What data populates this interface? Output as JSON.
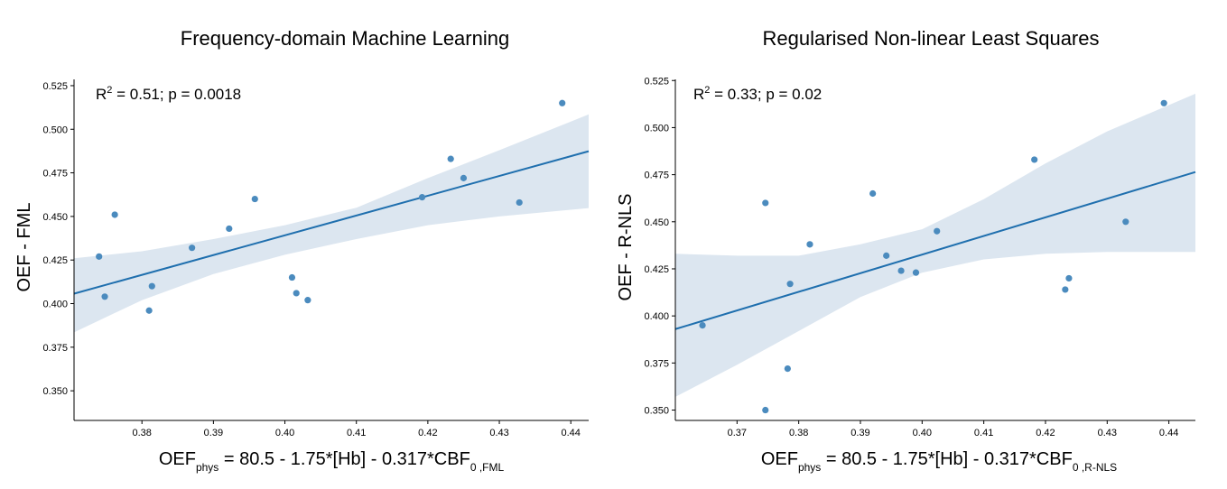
{
  "chart_data": [
    {
      "type": "scatter",
      "title": "Frequency-domain Machine Learning",
      "ylabel": "OEF - FML",
      "xlabel": {
        "main": "OEF",
        "sub_phys": "phys",
        "formula": " = 80.5 - 1.75*[Hb] - 0.317*CBF",
        "sub_tail": "0 ,FML"
      },
      "annotation": {
        "r2_label": "R",
        "r2_sup": "2",
        "stats": " = 0.51;   p = 0.0018"
      },
      "xlim": [
        0.3705,
        0.4425
      ],
      "ylim": [
        0.333,
        0.5286
      ],
      "xticks": [
        0.38,
        0.39,
        0.4,
        0.41,
        0.42,
        0.43,
        0.44
      ],
      "xtick_labels": [
        "0.38",
        "0.39",
        "0.40",
        "0.41",
        "0.42",
        "0.43",
        "0.44"
      ],
      "yticks": [
        0.35,
        0.375,
        0.4,
        0.425,
        0.45,
        0.475,
        0.5,
        0.525
      ],
      "ytick_labels": [
        "0.350",
        "0.375",
        "0.400",
        "0.425",
        "0.450",
        "0.475",
        "0.500",
        "0.525"
      ],
      "points": [
        {
          "x": 0.374,
          "y": 0.427
        },
        {
          "x": 0.3748,
          "y": 0.404
        },
        {
          "x": 0.3762,
          "y": 0.451
        },
        {
          "x": 0.381,
          "y": 0.396
        },
        {
          "x": 0.3814,
          "y": 0.41
        },
        {
          "x": 0.387,
          "y": 0.432
        },
        {
          "x": 0.3922,
          "y": 0.443
        },
        {
          "x": 0.3958,
          "y": 0.46
        },
        {
          "x": 0.401,
          "y": 0.415
        },
        {
          "x": 0.4016,
          "y": 0.406
        },
        {
          "x": 0.4032,
          "y": 0.402
        },
        {
          "x": 0.4192,
          "y": 0.461
        },
        {
          "x": 0.4232,
          "y": 0.483
        },
        {
          "x": 0.425,
          "y": 0.472
        },
        {
          "x": 0.4328,
          "y": 0.458
        },
        {
          "x": 0.4388,
          "y": 0.515
        }
      ],
      "fit": {
        "x": [
          0.3705,
          0.4425
        ],
        "y": [
          0.4057,
          0.4874
        ]
      },
      "ci_band": {
        "x": [
          0.3705,
          0.38,
          0.39,
          0.4,
          0.41,
          0.42,
          0.43,
          0.4425
        ],
        "upper": [
          0.426,
          0.43,
          0.437,
          0.445,
          0.455,
          0.472,
          0.488,
          0.5085
        ],
        "lower": [
          0.3835,
          0.402,
          0.417,
          0.428,
          0.437,
          0.445,
          0.45,
          0.4548
        ]
      },
      "colors": {
        "points": "#4b8bbe",
        "line": "#1f6fae",
        "band": "#dce6f0"
      }
    },
    {
      "type": "scatter",
      "title": "Regularised Non-linear Least Squares",
      "ylabel": "OEF - R-NLS",
      "xlabel": {
        "main": "OEF",
        "sub_phys": "phys",
        "formula": " = 80.5 - 1.75*[Hb] - 0.317*CBF",
        "sub_tail": "0 ,R-NLS"
      },
      "annotation": {
        "r2_label": "R",
        "r2_sup": "2",
        "stats": " = 0.33;   p = 0.02"
      },
      "xlim": [
        0.36,
        0.4443
      ],
      "ylim": [
        0.3445,
        0.5256
      ],
      "xticks": [
        0.37,
        0.38,
        0.39,
        0.4,
        0.41,
        0.42,
        0.43,
        0.44
      ],
      "xtick_labels": [
        "0.37",
        "0.38",
        "0.39",
        "0.40",
        "0.41",
        "0.42",
        "0.43",
        "0.44"
      ],
      "yticks": [
        0.35,
        0.375,
        0.4,
        0.425,
        0.45,
        0.475,
        0.5,
        0.525
      ],
      "ytick_labels": [
        "0.350",
        "0.375",
        "0.400",
        "0.425",
        "0.450",
        "0.475",
        "0.500",
        "0.525"
      ],
      "points": [
        {
          "x": 0.3644,
          "y": 0.395
        },
        {
          "x": 0.3746,
          "y": 0.46
        },
        {
          "x": 0.3746,
          "y": 0.35
        },
        {
          "x": 0.3782,
          "y": 0.372
        },
        {
          "x": 0.3786,
          "y": 0.417
        },
        {
          "x": 0.3818,
          "y": 0.438
        },
        {
          "x": 0.392,
          "y": 0.465
        },
        {
          "x": 0.3942,
          "y": 0.432
        },
        {
          "x": 0.3966,
          "y": 0.424
        },
        {
          "x": 0.399,
          "y": 0.423
        },
        {
          "x": 0.4024,
          "y": 0.445
        },
        {
          "x": 0.4182,
          "y": 0.483
        },
        {
          "x": 0.4232,
          "y": 0.414
        },
        {
          "x": 0.4238,
          "y": 0.42
        },
        {
          "x": 0.433,
          "y": 0.45
        },
        {
          "x": 0.4392,
          "y": 0.513
        }
      ],
      "fit": {
        "x": [
          0.36,
          0.4443
        ],
        "y": [
          0.393,
          0.4764
        ]
      },
      "ci_band": {
        "x": [
          0.36,
          0.37,
          0.38,
          0.39,
          0.4,
          0.41,
          0.42,
          0.43,
          0.4443
        ],
        "upper": [
          0.433,
          0.432,
          0.432,
          0.438,
          0.446,
          0.462,
          0.481,
          0.498,
          0.518
        ],
        "lower": [
          0.357,
          0.374,
          0.392,
          0.41,
          0.423,
          0.43,
          0.433,
          0.434,
          0.434
        ]
      },
      "colors": {
        "points": "#4b8bbe",
        "line": "#1f6fae",
        "band": "#dce6f0"
      }
    }
  ]
}
